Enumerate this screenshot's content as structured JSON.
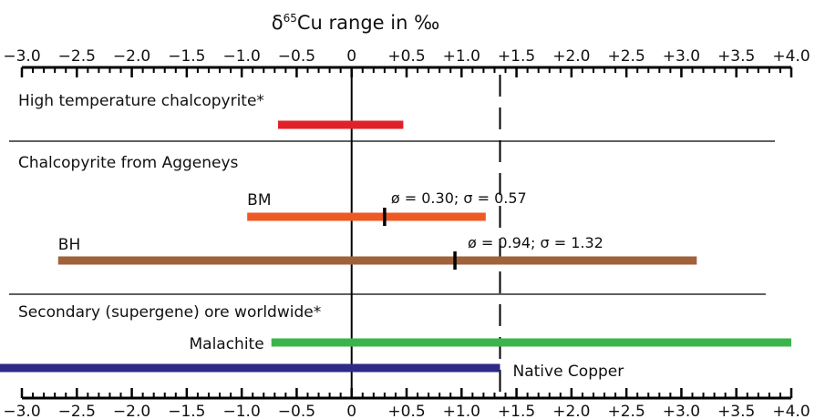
{
  "chart_data": {
    "type": "bar",
    "title_prefix": "δ",
    "title_superscript": "65",
    "title_suffix": "Cu range in ‰",
    "xlim": [
      -3.0,
      4.0
    ],
    "tick_values": [
      -3.0,
      -2.5,
      -2.0,
      -1.5,
      -1.0,
      -0.5,
      0,
      0.5,
      1.0,
      1.5,
      2.0,
      2.5,
      3.0,
      3.5,
      4.0
    ],
    "tick_labels": [
      "−3.0",
      "−2.5",
      "−2.0",
      "−1.5",
      "−1.0",
      "−0.5",
      "0",
      "+0.5",
      "+1.0",
      "+1.5",
      "+2.0",
      "+2.5",
      "+3.0",
      "+3.5",
      "+4.0"
    ],
    "zero_line": 0,
    "dashed_reference": 1.35,
    "sections": [
      {
        "label": "High temperature chalcopyrite*"
      },
      {
        "label": "Chalcopyrite from Aggeneys"
      },
      {
        "label": "Secondary (supergene) ore worldwide*"
      }
    ],
    "ranges": [
      {
        "label": "",
        "min": -0.67,
        "max": 0.47,
        "color": "#e2202a"
      },
      {
        "label": "BM",
        "min": -0.95,
        "max": 1.22,
        "color": "#ee5a24",
        "mean": 0.3,
        "stat_label": "ø = 0.30; σ = 0.57"
      },
      {
        "label": "BH",
        "min": -2.67,
        "max": 3.14,
        "color": "#a0623a",
        "mean": 0.94,
        "stat_label": "ø = 0.94; σ = 1.32"
      },
      {
        "label": "Malachite",
        "min": -0.73,
        "max": 4.0,
        "color": "#3bb54a"
      },
      {
        "label": "Native Copper",
        "min": -3.4,
        "max": 1.35,
        "color": "#2e2a85"
      }
    ]
  }
}
